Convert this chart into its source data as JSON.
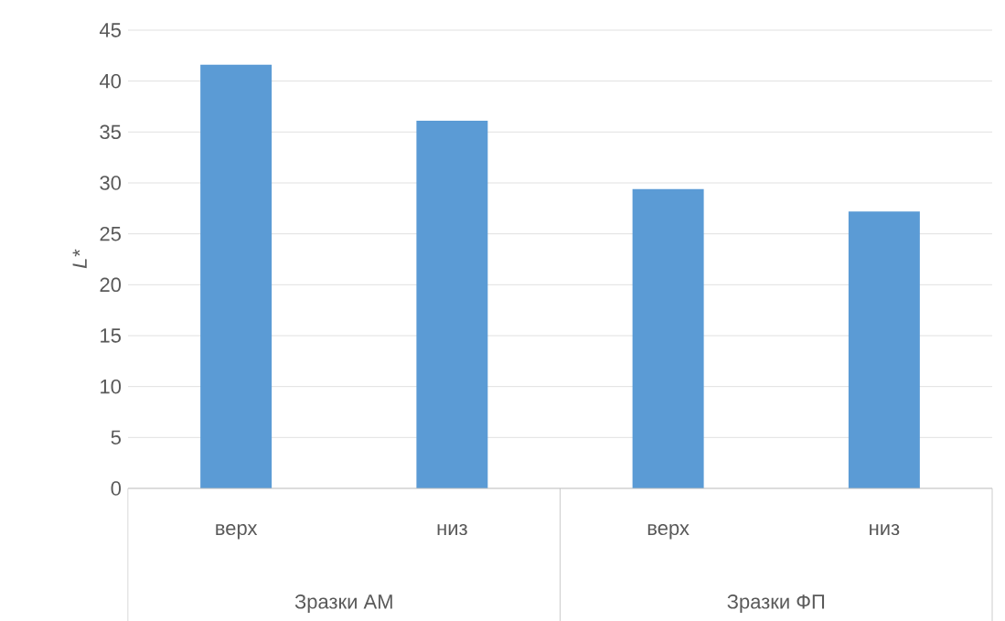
{
  "chart_data": {
    "type": "bar",
    "categories": [
      "верх",
      "низ",
      "верх",
      "низ"
    ],
    "values": [
      41.6,
      36.1,
      29.4,
      27.2
    ],
    "color": "#5b9bd5",
    "ylabel": "L*",
    "ylim": [
      0,
      45
    ],
    "yticks": [
      0,
      5,
      10,
      15,
      20,
      25,
      30,
      35,
      40,
      45
    ],
    "grid": "y",
    "annotations": [
      "Зразки АМ",
      "Зразки ФП"
    ]
  }
}
